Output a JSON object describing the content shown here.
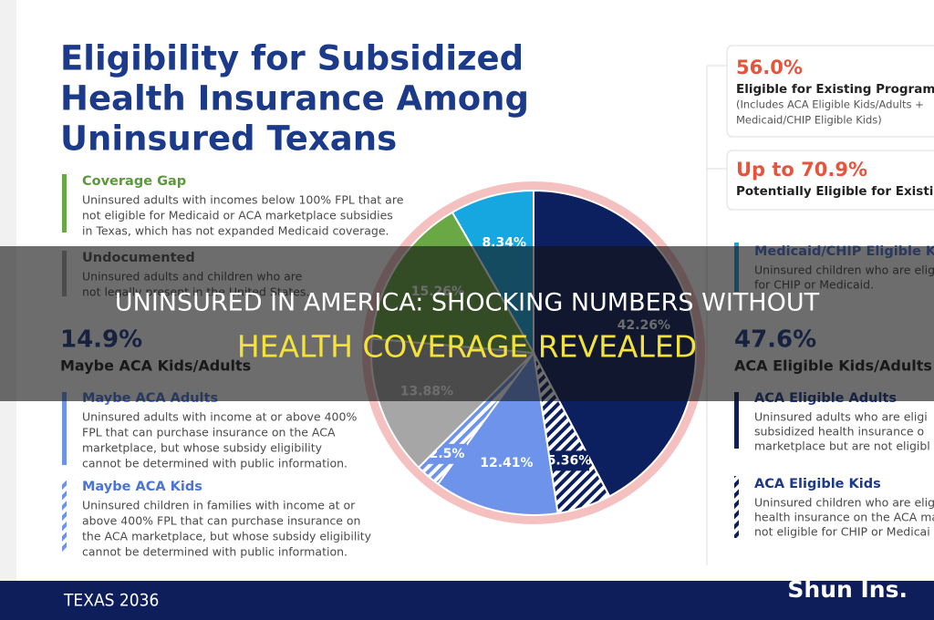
{
  "header": {
    "title_lines": [
      "Eligibility for Subsidized",
      "Health Insurance Among",
      "Uninsured Texans"
    ]
  },
  "chart_data": {
    "type": "pie",
    "categories": [
      "ACA Eligible Adults",
      "ACA Eligible Kids",
      "Maybe ACA Adults",
      "Maybe ACA Kids",
      "Undocumented",
      "Coverage Gap",
      "Medicaid/CHIP Eligible Kids"
    ],
    "values": [
      42.26,
      5.36,
      12.41,
      2.5,
      13.88,
      15.26,
      8.34
    ],
    "value_labels": [
      "42.26%",
      "5.36%",
      "12.41%",
      "2.5%",
      "13.88%",
      "15.26%",
      "8.34%"
    ],
    "colors": [
      "#0c1f5e",
      "#0c1f5e",
      "#6e93ea",
      "#6e93ea",
      "#a6a6a6",
      "#6aa845",
      "#16a6e0"
    ],
    "hatched": [
      false,
      true,
      false,
      true,
      false,
      false,
      false
    ]
  },
  "legend_descriptions": [
    [
      "Uninsured adults who are eligi",
      "subsidized health insurance o",
      "marketplace but are not eligibl"
    ],
    [
      "Uninsured children who are elig",
      "health insurance on the ACA ma",
      "not eligible for CHIP or Medicai"
    ],
    [
      "Uninsured adults with income at or above 400%",
      "FPL that can purchase insurance on the ACA",
      "marketplace, but whose subsidy eligibility",
      "cannot be determined with public information."
    ],
    [
      "Uninsured children in families with income at or",
      "above 400% FPL that can purchase insurance on",
      "the ACA marketplace, but whose subsidy eligibility",
      "cannot be determined with public information."
    ],
    [
      "Uninsured adults and children who are",
      "not legally present in the United States."
    ],
    [
      "Uninsured adults with incomes below 100% FPL that are",
      "not eligible for Medicaid or ACA marketplace subsidies",
      "in Texas, which has not expanded Medicaid coverage."
    ],
    [
      "Uninsured children who are eligi",
      "for CHIP or Medicaid."
    ]
  ],
  "left_summary": {
    "value": "14.9%",
    "label": "Maybe ACA Kids/Adults"
  },
  "right_summary": {
    "value": "47.6%",
    "label": "ACA Eligible Kids/Adults"
  },
  "right_boxes": [
    {
      "value": "56.0%",
      "lines": [
        "Eligible for Existing Program",
        "(Includes ACA Eligible Kids/Adults +",
        "Medicaid/CHIP Eligible Kids)"
      ]
    },
    {
      "value": "Up to 70.9%",
      "lines": [
        "Potentially Eligible for Existi"
      ]
    }
  ],
  "banner": {
    "line1": "UNINSURED IN AMERICA: SHOCKING NUMBERS WITHOUT",
    "line2": "HEALTH COVERAGE REVEALED"
  },
  "footer": {
    "logo": "TEXAS 2036",
    "watermark": "Shun Ins."
  }
}
